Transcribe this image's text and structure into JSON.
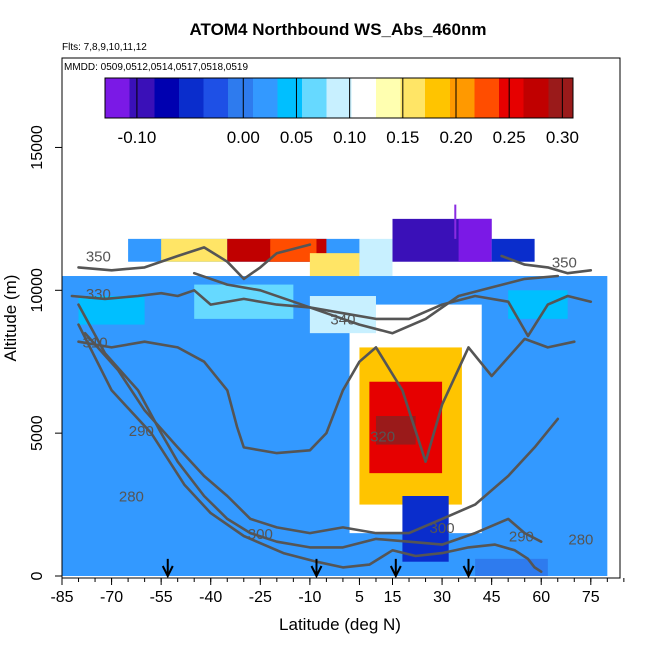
{
  "chart_data": {
    "type": "heatmap",
    "title": "ATOM4 Northbound WS_Abs_460nm",
    "subtitle_flights": "Flts: 7,8,9,10,11,12",
    "subtitle_dates": "MMDD: 0509,0512,0514,0517,0518,0519",
    "xlabel": "Latitude (deg N)",
    "ylabel": "Altitude (m)",
    "xlim": [
      -85,
      85
    ],
    "ylim": [
      0,
      17500
    ],
    "x_ticks": [
      -85,
      -70,
      -55,
      -40,
      -25,
      -10,
      5,
      15,
      30,
      45,
      60,
      75
    ],
    "y_ticks": [
      0,
      5000,
      10000,
      15000
    ],
    "colorbar": {
      "range": [
        -0.13,
        0.31
      ],
      "ticks": [
        -0.1,
        0.0,
        0.05,
        0.1,
        0.15,
        0.2,
        0.25,
        0.3
      ],
      "tick_labels": [
        "-0.10",
        "0.00",
        "0.05",
        "0.10",
        "0.15",
        "0.20",
        "0.25",
        "0.30"
      ],
      "colors": [
        "#7b19e6",
        "#3a10b8",
        "#0000b0",
        "#0a2dcc",
        "#1e50e6",
        "#2e7bee",
        "#3399ff",
        "#00bfff",
        "#66d9ff",
        "#c8f0ff",
        "#ffffff",
        "#ffffb0",
        "#ffe566",
        "#ffc400",
        "#ff9900",
        "#ff4d00",
        "#e60000",
        "#c00000",
        "#9a1a1a"
      ]
    },
    "field_layers": [
      {
        "lat": [
          -85,
          80
        ],
        "alt": [
          0,
          10500
        ],
        "value": 0.01
      },
      {
        "lat": [
          2,
          42
        ],
        "alt": [
          1500,
          9500
        ],
        "value": 0.12
      },
      {
        "lat": [
          5,
          36
        ],
        "alt": [
          2500,
          8000
        ],
        "value": 0.19
      },
      {
        "lat": [
          8,
          30
        ],
        "alt": [
          3600,
          6800
        ],
        "value": 0.26
      },
      {
        "lat": [
          10,
          22
        ],
        "alt": [
          4600,
          5600
        ],
        "value": 0.3
      },
      {
        "lat": [
          -65,
          5
        ],
        "alt": [
          11000,
          11800
        ],
        "value": 0.02
      },
      {
        "lat": [
          -55,
          -35
        ],
        "alt": [
          11000,
          11800
        ],
        "value": 0.15
      },
      {
        "lat": [
          -35,
          -5
        ],
        "alt": [
          11000,
          11800
        ],
        "value": 0.27
      },
      {
        "lat": [
          -22,
          -8
        ],
        "alt": [
          11000,
          11800
        ],
        "value": 0.22
      },
      {
        "lat": [
          -10,
          5
        ],
        "alt": [
          10500,
          11300
        ],
        "value": 0.15
      },
      {
        "lat": [
          5,
          15
        ],
        "alt": [
          10500,
          11800
        ],
        "value": 0.09
      },
      {
        "lat": [
          15,
          45
        ],
        "alt": [
          11000,
          12500
        ],
        "value": -0.1
      },
      {
        "lat": [
          35,
          45
        ],
        "alt": [
          11000,
          12500
        ],
        "value": -0.12
      },
      {
        "lat": [
          45,
          58
        ],
        "alt": [
          11000,
          11800
        ],
        "value": -0.06
      },
      {
        "lat": [
          -45,
          -15
        ],
        "alt": [
          9000,
          10200
        ],
        "value": 0.07
      },
      {
        "lat": [
          -10,
          10
        ],
        "alt": [
          8500,
          9800
        ],
        "value": 0.09
      },
      {
        "lat": [
          50,
          68
        ],
        "alt": [
          9000,
          10000
        ],
        "value": 0.05
      },
      {
        "lat": [
          -80,
          -60
        ],
        "alt": [
          8800,
          9800
        ],
        "value": 0.04
      },
      {
        "lat": [
          18,
          32
        ],
        "alt": [
          500,
          2800
        ],
        "value": -0.04
      },
      {
        "lat": [
          40,
          62
        ],
        "alt": [
          0,
          600
        ],
        "value": -0.01
      }
    ],
    "contours": [
      {
        "label": "280",
        "lat": [
          -80,
          -70,
          -58,
          -48,
          -40,
          -30,
          -18,
          -8,
          0,
          8,
          15,
          22,
          30,
          38,
          46,
          52,
          56,
          58,
          60
        ],
        "alt": [
          8800,
          6500,
          5000,
          3200,
          2200,
          1400,
          800,
          500,
          300,
          400,
          900,
          700,
          800,
          1000,
          1100,
          900,
          600,
          300,
          150
        ]
      },
      {
        "label": "290",
        "lat": [
          -80,
          -72,
          -62,
          -55,
          -50,
          -42,
          -35,
          -28,
          -20,
          -10,
          0,
          10,
          20,
          30,
          40,
          50,
          55,
          60
        ],
        "alt": [
          9500,
          7800,
          6500,
          5000,
          4000,
          2800,
          2000,
          1500,
          1200,
          1000,
          1000,
          1300,
          1200,
          1100,
          1500,
          2000,
          1500,
          1200
        ]
      },
      {
        "label": "300",
        "lat": [
          -78,
          -68,
          -60,
          -50,
          -42,
          -35,
          -28,
          -20,
          -10,
          0,
          10,
          20,
          30,
          40,
          50,
          58,
          65
        ],
        "alt": [
          8500,
          7200,
          5800,
          4500,
          3500,
          2800,
          2000,
          1700,
          1500,
          1700,
          1500,
          1500,
          2000,
          2500,
          3500,
          4500,
          5500
        ]
      },
      {
        "label": "310",
        "lat": [
          -80,
          -70,
          -60,
          -50,
          -42,
          -35,
          -32,
          -30,
          -20,
          -10,
          -5,
          0,
          5,
          10,
          18,
          25,
          30,
          38,
          45,
          55,
          62,
          70
        ],
        "alt": [
          8200,
          8000,
          8200,
          8000,
          7500,
          6500,
          5200,
          4500,
          4300,
          4400,
          5000,
          6500,
          7500,
          8000,
          6500,
          4000,
          6000,
          8000,
          7000,
          8300,
          8000,
          8200
        ]
      },
      {
        "label": "330",
        "lat": [
          -82,
          -72,
          -62,
          -55,
          -50,
          -45,
          -40,
          -30,
          -20,
          -10,
          0,
          10,
          20,
          30,
          40,
          50,
          56,
          62,
          68,
          75
        ],
        "alt": [
          9800,
          9700,
          9800,
          9900,
          9800,
          10000,
          9500,
          9700,
          9500,
          9400,
          9200,
          9000,
          9000,
          9500,
          9800,
          9600,
          8400,
          9500,
          9800,
          9600
        ]
      },
      {
        "label": "340",
        "lat": [
          -45,
          -35,
          -25,
          -15,
          -5,
          5,
          15,
          25,
          35,
          45,
          55,
          65
        ],
        "alt": [
          10600,
          10200,
          10000,
          9600,
          9200,
          8800,
          8500,
          9000,
          9800,
          10100,
          10400,
          10500
        ]
      },
      {
        "label": "350",
        "lat": [
          -80,
          -70,
          -60,
          -50,
          -42,
          -35,
          -30,
          -25,
          -20,
          -10
        ],
        "alt": [
          10800,
          10700,
          10800,
          11200,
          11500,
          11000,
          10400,
          10800,
          11300,
          11600
        ]
      },
      {
        "label": "350",
        "lat": [
          48,
          55,
          62,
          68,
          75
        ],
        "alt": [
          11200,
          10900,
          10800,
          10600,
          10700
        ]
      }
    ],
    "contour_labels": [
      {
        "text": "350",
        "lat": -74,
        "alt": 11000
      },
      {
        "text": "330",
        "lat": -74,
        "alt": 9700
      },
      {
        "text": "310",
        "lat": -75,
        "alt": 8000
      },
      {
        "text": "340",
        "lat": 0,
        "alt": 8800
      },
      {
        "text": "290",
        "lat": -61,
        "alt": 4900
      },
      {
        "text": "280",
        "lat": -64,
        "alt": 2600
      },
      {
        "text": "300",
        "lat": -25,
        "alt": 1300
      },
      {
        "text": "320",
        "lat": 12,
        "alt": 4700
      },
      {
        "text": "300",
        "lat": 30,
        "alt": 1500
      },
      {
        "text": "290",
        "lat": 54,
        "alt": 1200
      },
      {
        "text": "280",
        "lat": 72,
        "alt": 1100
      },
      {
        "text": "350",
        "lat": 67,
        "alt": 10800
      }
    ],
    "marker_arrows_lat": [
      -53,
      -8,
      16,
      38
    ],
    "tropopause_marker": {
      "lat": 34,
      "alt_range": [
        11800,
        13000
      ]
    }
  }
}
